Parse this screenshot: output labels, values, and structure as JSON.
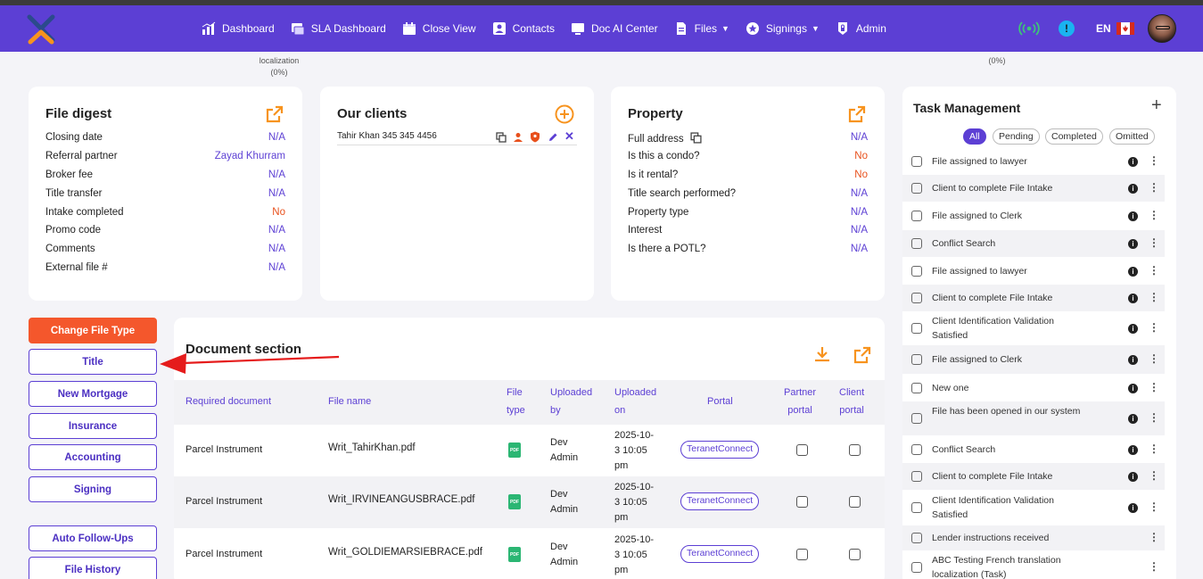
{
  "nav": {
    "items": [
      {
        "label": "Dashboard",
        "icon": "dashboard-icon"
      },
      {
        "label": "SLA Dashboard",
        "icon": "sla-dashboard-icon"
      },
      {
        "label": "Close View",
        "icon": "calendar-icon"
      },
      {
        "label": "Contacts",
        "icon": "contacts-icon"
      },
      {
        "label": "Doc AI Center",
        "icon": "monitor-icon"
      },
      {
        "label": "Files",
        "icon": "file-icon",
        "dropdown": true
      },
      {
        "label": "Signings",
        "icon": "signing-icon",
        "dropdown": true
      },
      {
        "label": "Admin",
        "icon": "lock-icon"
      }
    ],
    "language": "EN"
  },
  "progress_labels": {
    "left": "localization",
    "left_percent": "(0%)",
    "right_percent": "(0%)"
  },
  "file_digest": {
    "title": "File digest",
    "rows": [
      {
        "label": "Closing date",
        "value": "N/A"
      },
      {
        "label": "Referral partner",
        "value": "Zayad Khurram"
      },
      {
        "label": "Broker fee",
        "value": "N/A"
      },
      {
        "label": "Title transfer",
        "value": "N/A"
      },
      {
        "label": "Intake completed",
        "value": "No"
      },
      {
        "label": "Promo code",
        "value": "N/A"
      },
      {
        "label": "Comments",
        "value": "N/A"
      },
      {
        "label": "External file #",
        "value": "N/A"
      }
    ]
  },
  "clients": {
    "title": "Our clients",
    "client_text": "Tahir Khan 345 345 4456"
  },
  "property": {
    "title": "Property",
    "rows": [
      {
        "label": "Full address",
        "value": "N/A"
      },
      {
        "label": "Is this a condo?",
        "value": "No"
      },
      {
        "label": "Is it rental?",
        "value": "No"
      },
      {
        "label": "Title search performed?",
        "value": "N/A"
      },
      {
        "label": "Property type",
        "value": "N/A"
      },
      {
        "label": "Interest",
        "value": "N/A"
      },
      {
        "label": "Is there a POTL?",
        "value": "N/A"
      }
    ]
  },
  "sidebar": {
    "buttons": [
      {
        "label": "Change File Type",
        "primary": true
      },
      {
        "label": "Title"
      },
      {
        "label": "New Mortgage"
      },
      {
        "label": "Insurance"
      },
      {
        "label": "Accounting"
      },
      {
        "label": "Signing"
      },
      {
        "label": "Auto Follow-Ups"
      },
      {
        "label": "File History"
      }
    ]
  },
  "documents": {
    "title": "Document section",
    "headers": {
      "required": "Required document",
      "file_name": "File name",
      "file_type_1": "File",
      "file_type_2": "type",
      "uploaded_by_1": "Uploaded",
      "uploaded_by_2": "by",
      "uploaded_on_1": "Uploaded",
      "uploaded_on_2": "on",
      "portal": "Portal",
      "partner_1": "Partner",
      "partner_2": "portal",
      "client_1": "Client",
      "client_2": "portal"
    },
    "rows": [
      {
        "required": "Parcel Instrument",
        "file_name": "Writ_TahirKhan.pdf",
        "by_1": "Dev",
        "by_2": "Admin",
        "on_1": "2025-10-",
        "on_2": "3 10:05",
        "on_3": "pm",
        "portal": "TeranetConnect"
      },
      {
        "required": "Parcel Instrument",
        "file_name": "Writ_IRVINEANGUSBRACE.pdf",
        "by_1": "Dev",
        "by_2": "Admin",
        "on_1": "2025-10-",
        "on_2": "3 10:05",
        "on_3": "pm",
        "portal": "TeranetConnect"
      },
      {
        "required": "Parcel Instrument",
        "file_name": "Writ_GOLDIEMARSIEBRACE.pdf",
        "by_1": "Dev",
        "by_2": "Admin",
        "on_1": "2025-10-",
        "on_2": "3 10:05",
        "on_3": "pm",
        "portal": "TeranetConnect"
      }
    ]
  },
  "tasks": {
    "title": "Task Management",
    "filters": [
      "All",
      "Pending",
      "Completed",
      "Omitted"
    ],
    "items": [
      {
        "label": "File assigned to lawyer"
      },
      {
        "label": "Client to complete File Intake"
      },
      {
        "label": "File assigned to Clerk"
      },
      {
        "label": "Conflict Search"
      },
      {
        "label": "File assigned to lawyer"
      },
      {
        "label": "Client to complete File Intake"
      },
      {
        "label": "Client Identification Validation Satisfied"
      },
      {
        "label": "File assigned to Clerk"
      },
      {
        "label": "New one"
      },
      {
        "label": "File has been opened in our system"
      },
      {
        "label": "Conflict Search"
      },
      {
        "label": "Client to complete File Intake"
      },
      {
        "label": "Client Identification Validation Satisfied"
      },
      {
        "label": "Lender instructions received"
      },
      {
        "label": "ABC Testing French translation localization (Task)"
      }
    ]
  },
  "colors": {
    "brand": "#5c3fd4",
    "accent": "#f4572c",
    "orange_icon": "#f7931e",
    "no_value": "#e8501c"
  }
}
